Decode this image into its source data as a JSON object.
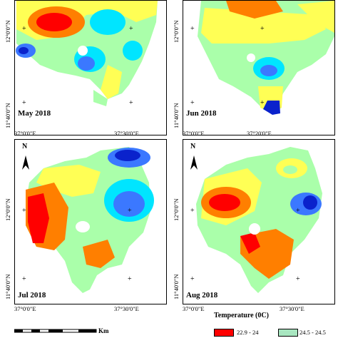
{
  "panels": [
    {
      "label": "May 2018"
    },
    {
      "label": "Jun 2018"
    },
    {
      "label": "Jul 2018"
    },
    {
      "label": "Aug 2018"
    }
  ],
  "axis_labels": {
    "lat_top": "12°0'0\"N",
    "lat_bottom": "11°40'0\"N",
    "lon_left": "37°0'0\"E",
    "lon_right_a": "37°30'0\"E",
    "lon_right_jun": "37°20'0\"E"
  },
  "north_label": "N",
  "scale_unit": "Km",
  "legend": {
    "title": "Temperature (0C)",
    "entries": [
      {
        "label": "22.9 - 24",
        "color": "#ff0000"
      },
      {
        "label": "24.5 - 24.5",
        "color": "#a8e6c0"
      }
    ]
  },
  "palette": {
    "red": "#ff0000",
    "orange": "#ff7f00",
    "yellow": "#ffff55",
    "lightgreen": "#aaffaa",
    "cyan": "#00e5ff",
    "blue": "#3b78ff",
    "darkblue": "#0a22cc"
  }
}
